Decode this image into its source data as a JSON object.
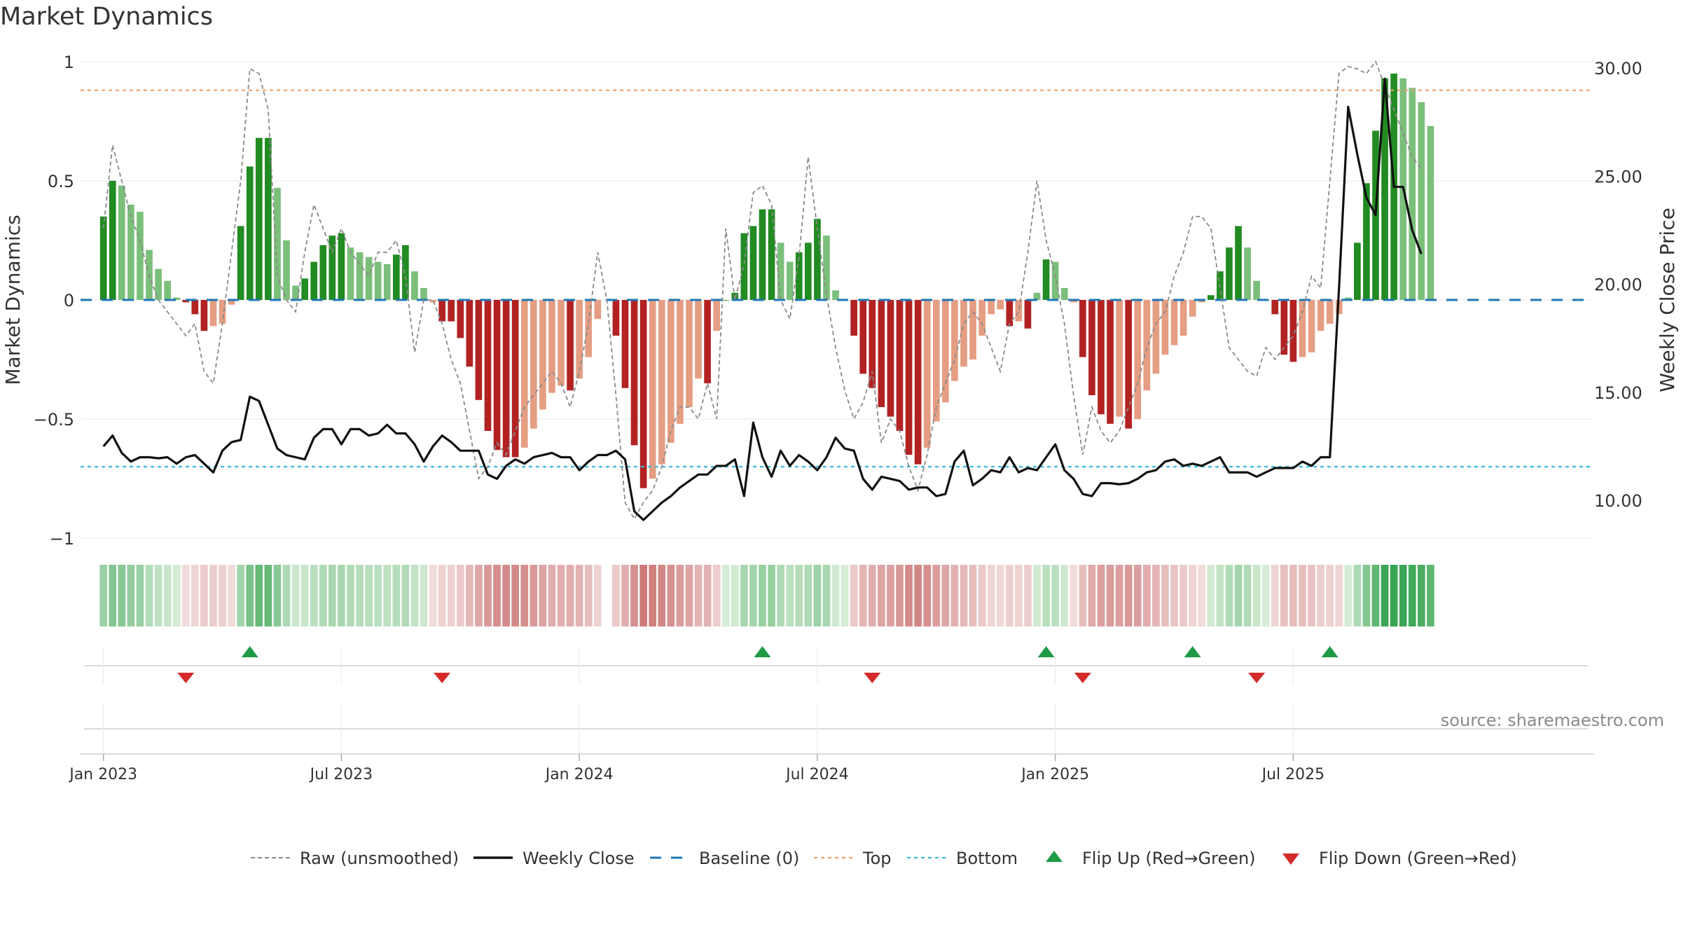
{
  "title": "Market Dynamics",
  "source": "source: sharemaestro.com",
  "chart_data": {
    "type": "bar",
    "title": "Market Dynamics",
    "ylabel_left": "Market Dynamics",
    "ylabel_right": "Weekly Close Price",
    "ylim_left": [
      -1,
      1
    ],
    "ylim_right": [
      6.8,
      30.7
    ],
    "yticks_left": [
      1,
      0.5,
      0,
      -0.5,
      -1
    ],
    "yticks_left_labels": [
      "1",
      "0.5",
      "0",
      "−0.5",
      "−1"
    ],
    "yticks_right": [
      30,
      25,
      20,
      15,
      10
    ],
    "yticks_right_labels": [
      "30.00",
      "25.00",
      "20.00",
      "15.00",
      "10.00"
    ],
    "x_range": [
      -2.5,
      162.8
    ],
    "xticks": [
      {
        "week": 0,
        "label": "Jan 2023"
      },
      {
        "week": 26,
        "label": "Jul 2023"
      },
      {
        "week": 52,
        "label": "Jan 2024"
      },
      {
        "week": 78,
        "label": "Jul 2024"
      },
      {
        "week": 104,
        "label": "Jan 2025"
      },
      {
        "week": 130,
        "label": "Jul 2025"
      }
    ],
    "top_line": 0.88,
    "bottom_line": -0.7,
    "dynamics": [
      0.35,
      0.5,
      0.48,
      0.4,
      0.37,
      0.21,
      0.13,
      0.08,
      0.01,
      -0.01,
      -0.06,
      -0.13,
      -0.11,
      -0.1,
      -0.02,
      0.31,
      0.56,
      0.68,
      0.68,
      0.47,
      0.25,
      0.06,
      0.09,
      0.16,
      0.23,
      0.27,
      0.28,
      0.22,
      0.2,
      0.18,
      0.16,
      0.15,
      0.19,
      0.23,
      0.12,
      0.05,
      -0.01,
      -0.09,
      -0.09,
      -0.16,
      -0.28,
      -0.42,
      -0.55,
      -0.63,
      -0.66,
      -0.66,
      -0.62,
      -0.54,
      -0.46,
      -0.39,
      -0.36,
      -0.38,
      -0.33,
      -0.24,
      -0.08,
      null,
      -0.15,
      -0.37,
      -0.61,
      -0.79,
      -0.75,
      -0.69,
      -0.6,
      -0.52,
      -0.45,
      -0.33,
      -0.35,
      -0.13,
      0.0,
      0.03,
      0.28,
      0.31,
      0.38,
      0.38,
      0.24,
      0.16,
      0.2,
      0.24,
      0.34,
      0.27,
      0.04,
      0.0,
      -0.15,
      -0.31,
      -0.37,
      -0.45,
      -0.49,
      -0.55,
      -0.65,
      -0.69,
      -0.62,
      -0.51,
      -0.43,
      -0.34,
      -0.28,
      -0.25,
      -0.15,
      -0.06,
      -0.04,
      -0.11,
      -0.09,
      -0.12,
      0.03,
      0.17,
      0.16,
      0.05,
      -0.01,
      -0.24,
      -0.4,
      -0.48,
      -0.52,
      -0.49,
      -0.54,
      -0.5,
      -0.38,
      -0.31,
      -0.23,
      -0.19,
      -0.15,
      -0.07,
      -0.01,
      0.02,
      0.12,
      0.22,
      0.31,
      0.22,
      0.08,
      0.0,
      -0.06,
      -0.23,
      -0.26,
      -0.24,
      -0.22,
      -0.13,
      -0.1,
      -0.06,
      0.01,
      0.24,
      0.49,
      0.71,
      0.93,
      0.95,
      0.93,
      0.89,
      0.83,
      0.73
    ],
    "raw": [
      0.3,
      0.65,
      0.5,
      0.35,
      0.25,
      0.1,
      0.0,
      -0.05,
      -0.1,
      -0.15,
      -0.1,
      -0.3,
      -0.35,
      -0.1,
      0.2,
      0.5,
      0.97,
      0.95,
      0.8,
      0.1,
      0.0,
      -0.05,
      0.2,
      0.4,
      0.3,
      0.2,
      0.3,
      0.2,
      0.15,
      0.1,
      0.2,
      0.2,
      0.25,
      0.1,
      -0.22,
      0.0,
      0.0,
      -0.1,
      -0.25,
      -0.35,
      -0.55,
      -0.75,
      -0.7,
      -0.6,
      -0.65,
      -0.55,
      -0.45,
      -0.4,
      -0.35,
      -0.3,
      -0.35,
      -0.45,
      -0.3,
      -0.1,
      0.2,
      0.0,
      -0.4,
      -0.85,
      -0.92,
      -0.85,
      -0.8,
      -0.7,
      -0.55,
      -0.45,
      -0.45,
      -0.5,
      -0.35,
      -0.5,
      0.3,
      0.0,
      0.15,
      0.45,
      0.48,
      0.4,
      0.0,
      -0.08,
      0.18,
      0.6,
      0.3,
      0.02,
      -0.2,
      -0.38,
      -0.5,
      -0.43,
      -0.3,
      -0.6,
      -0.5,
      -0.55,
      -0.7,
      -0.8,
      -0.65,
      -0.45,
      -0.35,
      -0.25,
      -0.1,
      -0.05,
      -0.1,
      -0.2,
      -0.3,
      -0.1,
      -0.05,
      0.2,
      0.5,
      0.25,
      0.1,
      -0.1,
      -0.4,
      -0.65,
      -0.45,
      -0.55,
      -0.6,
      -0.55,
      -0.45,
      -0.35,
      -0.2,
      -0.1,
      -0.05,
      0.1,
      0.2,
      0.35,
      0.35,
      0.3,
      0.05,
      -0.2,
      -0.25,
      -0.3,
      -0.32,
      -0.2,
      -0.25,
      -0.2,
      -0.15,
      -0.05,
      0.1,
      0.05,
      0.5,
      0.95,
      0.98,
      0.97,
      0.95,
      1.0,
      0.9,
      0.8,
      0.7,
      0.6,
      0.55
    ],
    "weekly_close": [
      12.5,
      13.0,
      12.2,
      11.8,
      12.0,
      12.0,
      11.95,
      12.0,
      11.7,
      12.0,
      12.1,
      11.7,
      11.3,
      12.3,
      12.7,
      12.8,
      14.8,
      14.6,
      13.5,
      12.4,
      12.1,
      12.0,
      11.9,
      12.9,
      13.3,
      13.3,
      12.6,
      13.3,
      13.3,
      13.0,
      13.1,
      13.5,
      13.1,
      13.1,
      12.6,
      11.8,
      12.5,
      13.0,
      12.7,
      12.3,
      12.3,
      12.3,
      11.2,
      11.0,
      11.6,
      11.9,
      11.7,
      12.0,
      12.1,
      12.2,
      12.0,
      12.0,
      11.4,
      11.8,
      12.1,
      12.1,
      12.3,
      11.9,
      9.5,
      9.1,
      9.5,
      9.9,
      10.2,
      10.6,
      10.9,
      11.2,
      11.2,
      11.6,
      11.6,
      11.9,
      10.2,
      13.6,
      12.0,
      11.1,
      12.3,
      11.6,
      12.1,
      11.8,
      11.4,
      12.0,
      12.9,
      12.4,
      12.3,
      11.0,
      10.5,
      11.1,
      11.0,
      10.9,
      10.5,
      10.6,
      10.6,
      10.2,
      10.3,
      11.8,
      12.3,
      10.7,
      11.0,
      11.4,
      11.3,
      12.0,
      11.3,
      11.5,
      11.4,
      12.0,
      12.6,
      11.4,
      11.0,
      10.3,
      10.2,
      10.8,
      10.8,
      10.75,
      10.8,
      11.0,
      11.3,
      11.4,
      11.8,
      11.9,
      11.6,
      11.7,
      11.6,
      11.8,
      12.0,
      11.3,
      11.3,
      11.3,
      11.1,
      11.3,
      11.5,
      11.5,
      11.5,
      11.8,
      11.6,
      12.0,
      12.0,
      19.8,
      28.2,
      26.0,
      24.0,
      23.2,
      29.5,
      24.5,
      24.5,
      22.5,
      21.4
    ],
    "flips_up": [
      16,
      72,
      103,
      119,
      134
    ],
    "flips_down": [
      9,
      37,
      84,
      107,
      126
    ],
    "colors": {
      "bullish_strong": "#228b22",
      "bullish_weak": "#7bbf7b",
      "bearish_strong": "#b22222",
      "bearish_weak": "#e59e83",
      "raw_line": "#8a8a8a",
      "close_line": "#111111",
      "baseline": "#1f77b4",
      "top_line": "#f0a070",
      "bottom_line": "#3bbcd9",
      "flip_up": "#1f9a46",
      "flip_down": "#d42a2a"
    },
    "legend": {
      "placement": "bottom-center",
      "items": [
        {
          "key": "raw",
          "label": "Raw (unsmoothed)"
        },
        {
          "key": "close",
          "label": "Weekly Close"
        },
        {
          "key": "baseline",
          "label": "Baseline (0)"
        },
        {
          "key": "top",
          "label": "Top"
        },
        {
          "key": "bottom",
          "label": "Bottom"
        },
        {
          "key": "flip_up",
          "label": "Flip Up (Red→Green)"
        },
        {
          "key": "flip_down",
          "label": "Flip Down (Green→Red)"
        }
      ]
    }
  }
}
